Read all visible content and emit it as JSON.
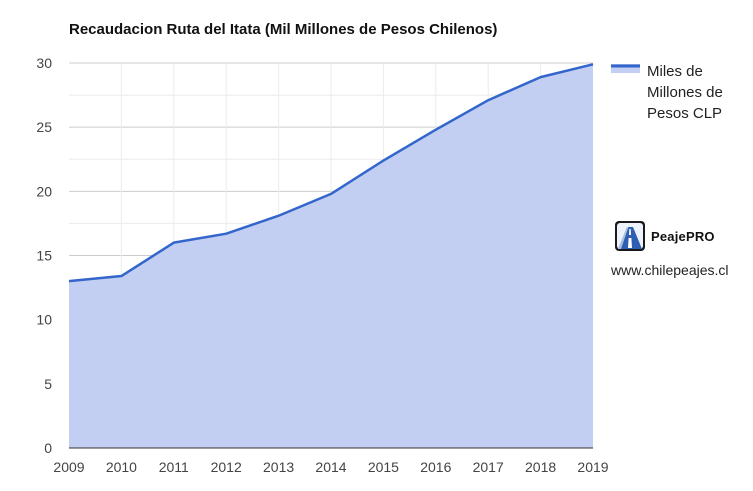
{
  "chart_data": {
    "type": "area",
    "title": "Recaudacion Ruta del Itata (Mil Millones de Pesos Chilenos)",
    "x": [
      2009,
      2010,
      2011,
      2012,
      2013,
      2014,
      2015,
      2016,
      2017,
      2018,
      2019
    ],
    "series": [
      {
        "name": "Miles de Millones de Pesos CLP",
        "values": [
          13.0,
          13.4,
          16.0,
          16.7,
          18.1,
          19.8,
          22.4,
          24.8,
          27.1,
          28.9,
          29.9
        ],
        "color": "#3366cc",
        "fill_color": "#c3cff2"
      }
    ],
    "ylim": [
      0,
      30
    ],
    "yticks": [
      0,
      5,
      10,
      15,
      20,
      25,
      30
    ],
    "xlabel": "",
    "ylabel": "",
    "grid": true,
    "legend_position": "right"
  },
  "legend": {
    "lines": [
      "Miles de",
      "Millones de",
      "Pesos CLP"
    ]
  },
  "branding": {
    "name": "PeajePRO",
    "logo": "road-perspective-logo",
    "website": "www.chilepeajes.cl"
  }
}
